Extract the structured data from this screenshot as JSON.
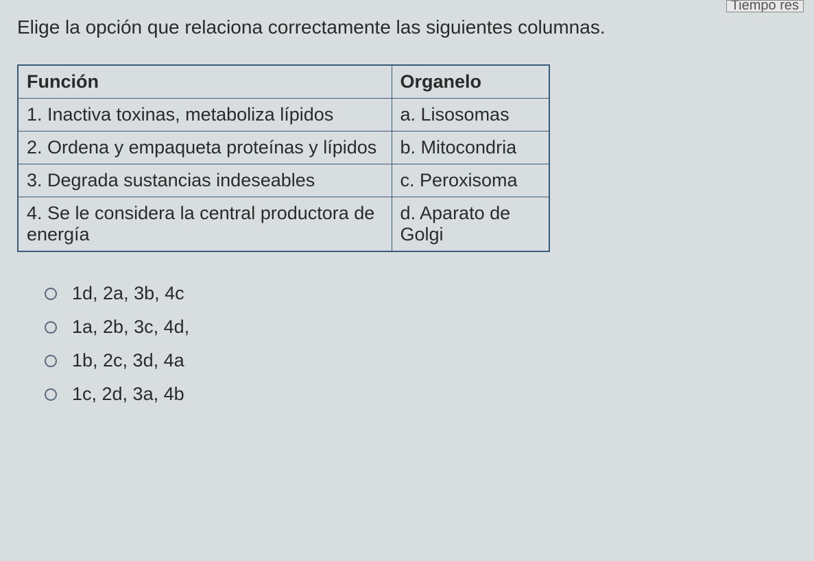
{
  "partial_label": "Tiempo res",
  "prompt": "Elige la opción que relaciona correctamente las siguientes columnas.",
  "table": {
    "headers": {
      "funcion": "Función",
      "organelo": "Organelo"
    },
    "rows": [
      {
        "funcion": "1. Inactiva toxinas, metaboliza lípidos",
        "organelo": "a. Lisosomas"
      },
      {
        "funcion": "2. Ordena y empaqueta proteínas y lípidos",
        "organelo": "b. Mitocondria"
      },
      {
        "funcion": "3. Degrada sustancias indeseables",
        "organelo": "c. Peroxisoma"
      },
      {
        "funcion": "4. Se le considera la central productora de energía",
        "organelo": "d. Aparato de Golgi"
      }
    ]
  },
  "options": [
    "1d, 2a, 3b, 4c",
    "1a, 2b, 3c, 4d,",
    "1b, 2c, 3d, 4a",
    "1c, 2d, 3a, 4b"
  ],
  "colors": {
    "background": "#d8dde0",
    "table_border": "#3a5a7a",
    "text": "#2a2a2a",
    "radio_border": "#5a6a7a"
  },
  "typography": {
    "prompt_fontsize": 28,
    "table_fontsize": 27,
    "option_fontsize": 27,
    "font_family": "Verdana"
  },
  "layout": {
    "table_col1_width": 545,
    "table_col2_width": 230
  }
}
